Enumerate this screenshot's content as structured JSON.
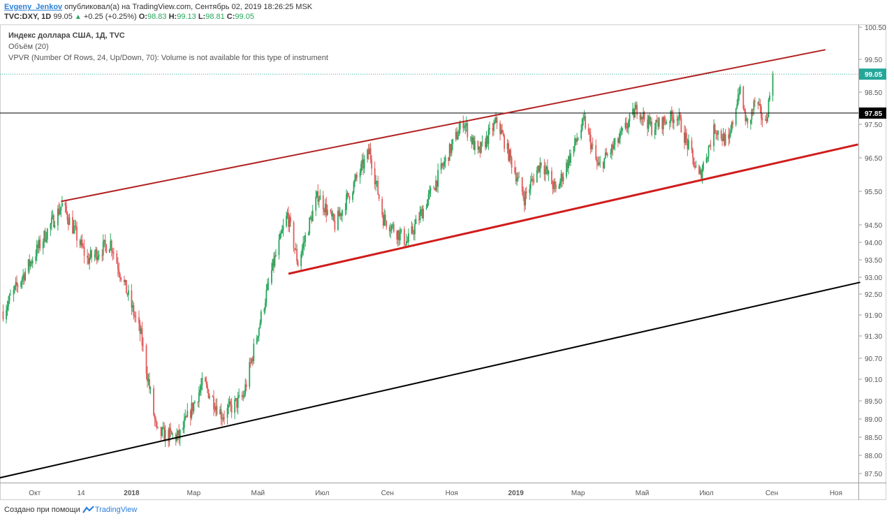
{
  "header": {
    "author": "Evgeny_Jenkov",
    "published": "опубликовал(а) на TradingView.com, Сентябрь 02, 2019 18:26:25 MSK",
    "symbol": "TVC:DXY, 1D",
    "last": "99.05",
    "change": "+0.25 (+0.25%)",
    "o_label": "O:",
    "o": "98.83",
    "h_label": "H:",
    "h": "99.13",
    "l_label": "L:",
    "l": "98.81",
    "c_label": "C:",
    "c": "99.05"
  },
  "legend": {
    "title": "Индекс доллара США, 1Д, TVC",
    "volume": "Объём (20)",
    "vpvr": "VPVR (Number Of Rows, 24, Up/Down, 70): Volume is not available for this type of instrument"
  },
  "footer": {
    "prefix": "Создано при помощи",
    "brand": "TradingView"
  },
  "colors": {
    "up": "#26a65b",
    "down": "#e25b5b",
    "channel": "#b22222",
    "support": "#d01c1c",
    "trend": "#000000",
    "price_tag": "#26a69a"
  },
  "chart_data": {
    "type": "candlestick",
    "y_ticks": [
      "100.50",
      "99.50",
      "98.50",
      "97.50",
      "96.50",
      "95.50",
      "94.50",
      "94.00",
      "93.50",
      "93.00",
      "92.50",
      "91.90",
      "91.30",
      "90.70",
      "90.10",
      "89.50",
      "89.00",
      "88.50",
      "88.00",
      "87.50"
    ],
    "x_ticks": [
      "Окт",
      "14",
      "2018",
      "Мар",
      "Май",
      "Июл",
      "Сен",
      "Ноя",
      "2019",
      "Мар",
      "Май",
      "Июл",
      "Сен",
      "Ноя"
    ],
    "last_price_label": "99.05",
    "horizontal_level_label": "97.85",
    "horizontal_level": 97.85,
    "anchors": [
      {
        "date": "2017-09-01",
        "close": 92.0
      },
      {
        "date": "2017-10-27",
        "close": 95.1
      },
      {
        "date": "2017-11-20",
        "close": 93.5
      },
      {
        "date": "2017-12-12",
        "close": 94.0
      },
      {
        "date": "2018-01-10",
        "close": 91.3
      },
      {
        "date": "2018-01-25",
        "close": 88.6
      },
      {
        "date": "2018-02-15",
        "close": 88.5
      },
      {
        "date": "2018-03-10",
        "close": 90.0
      },
      {
        "date": "2018-03-28",
        "close": 89.1
      },
      {
        "date": "2018-04-17",
        "close": 89.6
      },
      {
        "date": "2018-05-15",
        "close": 93.3
      },
      {
        "date": "2018-05-29",
        "close": 94.8
      },
      {
        "date": "2018-06-08",
        "close": 93.4
      },
      {
        "date": "2018-06-27",
        "close": 95.4
      },
      {
        "date": "2018-07-13",
        "close": 94.5
      },
      {
        "date": "2018-08-15",
        "close": 96.7
      },
      {
        "date": "2018-08-28",
        "close": 94.7
      },
      {
        "date": "2018-09-20",
        "close": 94.0
      },
      {
        "date": "2018-10-10",
        "close": 95.3
      },
      {
        "date": "2018-11-12",
        "close": 97.6
      },
      {
        "date": "2018-11-26",
        "close": 96.6
      },
      {
        "date": "2018-12-14",
        "close": 97.6
      },
      {
        "date": "2019-01-09",
        "close": 95.3
      },
      {
        "date": "2019-01-25",
        "close": 96.4
      },
      {
        "date": "2019-02-08",
        "close": 95.5
      },
      {
        "date": "2019-03-07",
        "close": 97.6
      },
      {
        "date": "2019-03-20",
        "close": 96.2
      },
      {
        "date": "2019-04-08",
        "close": 97.0
      },
      {
        "date": "2019-04-26",
        "close": 98.0
      },
      {
        "date": "2019-05-10",
        "close": 97.4
      },
      {
        "date": "2019-06-03",
        "close": 97.8
      },
      {
        "date": "2019-06-24",
        "close": 95.9
      },
      {
        "date": "2019-07-09",
        "close": 97.4
      },
      {
        "date": "2019-07-22",
        "close": 96.9
      },
      {
        "date": "2019-08-01",
        "close": 98.6
      },
      {
        "date": "2019-08-09",
        "close": 97.4
      },
      {
        "date": "2019-08-16",
        "close": 98.2
      },
      {
        "date": "2019-08-26",
        "close": 97.5
      },
      {
        "date": "2019-09-02",
        "close": 99.05
      }
    ],
    "trend_lines": [
      {
        "name": "upper-channel",
        "color": "channel",
        "width": 2,
        "from": {
          "date": "2017-10-26",
          "price": 95.2
        },
        "to": {
          "date": "2019-10-22",
          "price": 99.8
        }
      },
      {
        "name": "lower-channel",
        "color": "support",
        "width": 3,
        "from": {
          "date": "2018-05-30",
          "price": 93.1
        },
        "to": {
          "date": "2019-11-22",
          "price": 96.9
        }
      },
      {
        "name": "long-term-support",
        "color": "trend",
        "width": 2,
        "from": {
          "date": "2017-08-24",
          "price": 87.35
        },
        "to": {
          "date": "2019-11-24",
          "price": 92.85
        }
      }
    ]
  }
}
